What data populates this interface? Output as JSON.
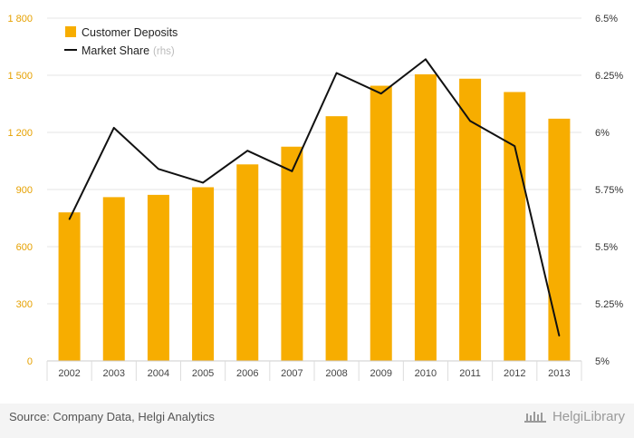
{
  "chart_data": {
    "type": "bar+line",
    "categories": [
      "2002",
      "2003",
      "2004",
      "2005",
      "2006",
      "2007",
      "2008",
      "2009",
      "2010",
      "2011",
      "2012",
      "2013"
    ],
    "series": [
      {
        "name": "Customer Deposits",
        "type": "bar",
        "axis": "left",
        "color": "#f7ad00",
        "values": [
          780,
          860,
          872,
          912,
          1032,
          1125,
          1285,
          1445,
          1505,
          1482,
          1412,
          1272
        ]
      },
      {
        "name": "Market Share",
        "name_suffix": "(rhs)",
        "type": "line",
        "axis": "right",
        "color": "#111111",
        "values": [
          5.62,
          6.02,
          5.84,
          5.78,
          5.92,
          5.83,
          6.26,
          6.17,
          6.32,
          6.05,
          5.94,
          5.11
        ]
      }
    ],
    "y_left": {
      "ylim": [
        0,
        1800
      ],
      "ticks": [
        "0",
        "300",
        "600",
        "900",
        "1 200",
        "1 500",
        "1 800"
      ],
      "tick_values": [
        0,
        300,
        600,
        900,
        1200,
        1500,
        1800
      ],
      "color": "#e6a100"
    },
    "y_right": {
      "ylim": [
        5,
        6.5
      ],
      "ticks": [
        "5%",
        "5.25%",
        "5.5%",
        "5.75%",
        "6%",
        "6.25%",
        "6.5%"
      ],
      "tick_values": [
        5,
        5.25,
        5.5,
        5.75,
        6,
        6.25,
        6.5
      ],
      "color": "#333333"
    },
    "grid": true,
    "legend_position": "top-left"
  },
  "footer": {
    "source": "Source: Company Data, Helgi Analytics",
    "brand": "HelgiLibrary"
  }
}
